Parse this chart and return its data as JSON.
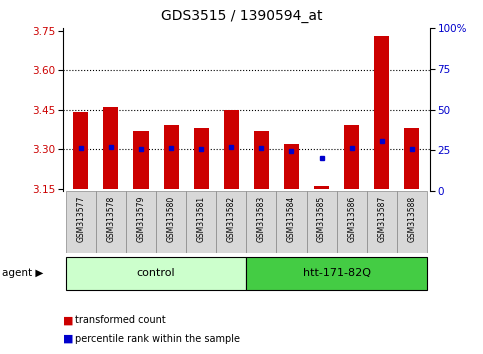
{
  "title": "GDS3515 / 1390594_at",
  "samples": [
    "GSM313577",
    "GSM313578",
    "GSM313579",
    "GSM313580",
    "GSM313581",
    "GSM313582",
    "GSM313583",
    "GSM313584",
    "GSM313585",
    "GSM313586",
    "GSM313587",
    "GSM313588"
  ],
  "red_values": [
    3.44,
    3.46,
    3.37,
    3.39,
    3.38,
    3.45,
    3.37,
    3.32,
    3.16,
    3.39,
    3.73,
    3.38
  ],
  "blue_values": [
    3.305,
    3.308,
    3.302,
    3.306,
    3.302,
    3.307,
    3.306,
    3.293,
    3.265,
    3.303,
    3.33,
    3.302
  ],
  "ylim_left": [
    3.14,
    3.76
  ],
  "ylim_right": [
    0,
    100
  ],
  "y_left_ticks": [
    3.15,
    3.3,
    3.45,
    3.6,
    3.75
  ],
  "y_right_ticks": [
    0,
    25,
    50,
    75,
    100
  ],
  "hgrid_values": [
    3.3,
    3.45,
    3.6
  ],
  "control_group": [
    0,
    1,
    2,
    3,
    4,
    5
  ],
  "treatment_group": [
    6,
    7,
    8,
    9,
    10,
    11
  ],
  "control_label": "control",
  "treatment_label": "htt-171-82Q",
  "agent_label": "agent",
  "bar_color": "#cc0000",
  "dot_color": "#0000cc",
  "control_bg": "#ccffcc",
  "treatment_bg": "#44cc44",
  "bar_bottom": 3.15
}
